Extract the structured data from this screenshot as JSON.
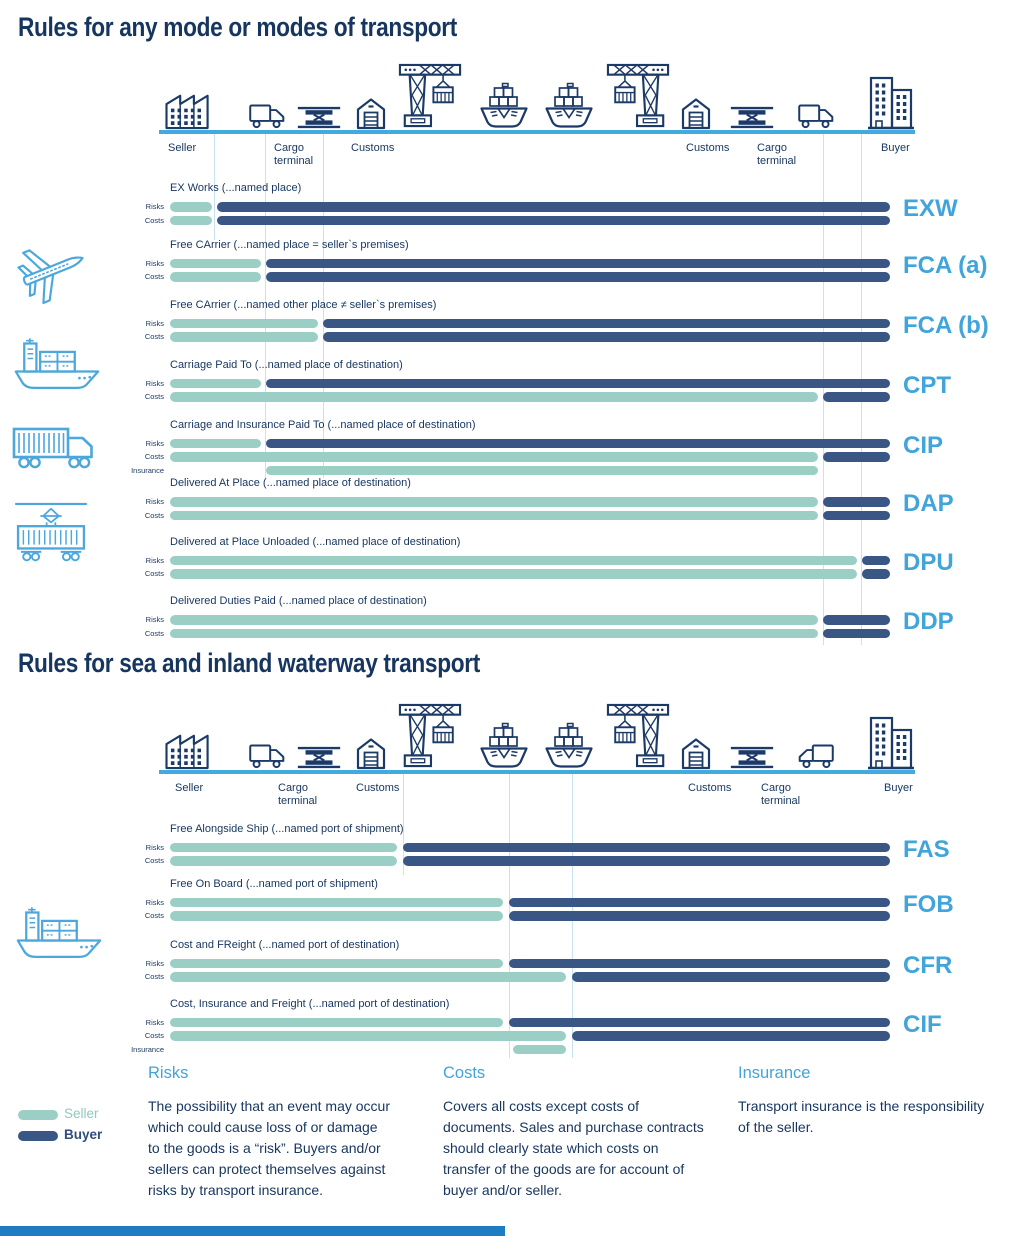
{
  "legend": {
    "seller_label": "Seller",
    "buyer_label": "Buyer"
  },
  "bar_labels": {
    "risks": "Risks",
    "costs": "Costs",
    "insurance": "Insurance"
  },
  "colors": {
    "seller": "#9BCFC6",
    "buyer": "#3A5685",
    "accent": "#41A4DA",
    "ink": "#16355F",
    "route": "#41AADF"
  },
  "sections": [
    {
      "title": "Rules for any mode or modes of transport",
      "stations": [
        "Seller",
        "Cargo terminal",
        "Customs",
        "Customs",
        "Cargo terminal",
        "Buyer"
      ],
      "icons": [
        {
          "name": "factory-icon"
        },
        {
          "name": "truck-icon"
        },
        {
          "name": "cargo-terminal-icon"
        },
        {
          "name": "warehouse-icon"
        },
        {
          "name": "crane-icon"
        },
        {
          "name": "ship-icon"
        },
        {
          "name": "ship-icon"
        },
        {
          "name": "crane-icon",
          "flip": true
        },
        {
          "name": "warehouse-icon"
        },
        {
          "name": "cargo-terminal-icon"
        },
        {
          "name": "truck-icon"
        },
        {
          "name": "building-icon"
        }
      ],
      "side_icons": [
        "airplane-icon",
        "cargo-ship-icon",
        "truck-side-icon",
        "train-icon"
      ],
      "rows": [
        {
          "code": "EXW",
          "label": "EX Works (...named place)",
          "bars": {
            "risks": [
              {
                "owner": "seller",
                "from": 170,
                "to": 212
              },
              {
                "owner": "buyer",
                "from": 217,
                "to": 890
              }
            ],
            "costs": [
              {
                "owner": "seller",
                "from": 170,
                "to": 212
              },
              {
                "owner": "buyer",
                "from": 217,
                "to": 890
              }
            ]
          }
        },
        {
          "code": "FCA (a)",
          "label": "Free CArrier (...named place = seller`s premises)",
          "bars": {
            "risks": [
              {
                "owner": "seller",
                "from": 170,
                "to": 261
              },
              {
                "owner": "buyer",
                "from": 266,
                "to": 890
              }
            ],
            "costs": [
              {
                "owner": "seller",
                "from": 170,
                "to": 261
              },
              {
                "owner": "buyer",
                "from": 266,
                "to": 890
              }
            ]
          }
        },
        {
          "code": "FCA (b)",
          "label": "Free CArrier (...named other place ≠ seller`s premises)",
          "bars": {
            "risks": [
              {
                "owner": "seller",
                "from": 170,
                "to": 318
              },
              {
                "owner": "buyer",
                "from": 323,
                "to": 890
              }
            ],
            "costs": [
              {
                "owner": "seller",
                "from": 170,
                "to": 318
              },
              {
                "owner": "buyer",
                "from": 323,
                "to": 890
              }
            ]
          }
        },
        {
          "code": "CPT",
          "label": "Carriage Paid To (...named place of destination)",
          "bars": {
            "risks": [
              {
                "owner": "seller",
                "from": 170,
                "to": 261
              },
              {
                "owner": "buyer",
                "from": 266,
                "to": 890
              }
            ],
            "costs": [
              {
                "owner": "seller",
                "from": 170,
                "to": 818
              },
              {
                "owner": "buyer",
                "from": 823,
                "to": 890
              }
            ]
          }
        },
        {
          "code": "CIP",
          "label": "Carriage and Insurance Paid To (...named place of destination)",
          "bars": {
            "risks": [
              {
                "owner": "seller",
                "from": 170,
                "to": 261
              },
              {
                "owner": "buyer",
                "from": 266,
                "to": 890
              }
            ],
            "costs": [
              {
                "owner": "seller",
                "from": 170,
                "to": 818
              },
              {
                "owner": "buyer",
                "from": 823,
                "to": 890
              }
            ],
            "insurance": [
              {
                "owner": "seller",
                "from": 266,
                "to": 818
              }
            ]
          }
        },
        {
          "code": "DAP",
          "label": "Delivered At Place (...named place of destination)",
          "bars": {
            "risks": [
              {
                "owner": "seller",
                "from": 170,
                "to": 818
              },
              {
                "owner": "buyer",
                "from": 823,
                "to": 890
              }
            ],
            "costs": [
              {
                "owner": "seller",
                "from": 170,
                "to": 818
              },
              {
                "owner": "buyer",
                "from": 823,
                "to": 890
              }
            ]
          }
        },
        {
          "code": "DPU",
          "label": "Delivered at Place Unloaded (...named place of destination)",
          "bars": {
            "risks": [
              {
                "owner": "seller",
                "from": 170,
                "to": 857
              },
              {
                "owner": "buyer",
                "from": 862,
                "to": 890
              }
            ],
            "costs": [
              {
                "owner": "seller",
                "from": 170,
                "to": 857
              },
              {
                "owner": "buyer",
                "from": 862,
                "to": 890
              }
            ]
          }
        },
        {
          "code": "DDP",
          "label": "Delivered Duties Paid (...named place of destination)",
          "bars": {
            "risks": [
              {
                "owner": "seller",
                "from": 170,
                "to": 818
              },
              {
                "owner": "buyer",
                "from": 823,
                "to": 890
              }
            ],
            "costs": [
              {
                "owner": "seller",
                "from": 170,
                "to": 818
              },
              {
                "owner": "buyer",
                "from": 823,
                "to": 890
              }
            ]
          }
        }
      ]
    },
    {
      "title": "Rules for sea and inland waterway transport",
      "stations": [
        "Seller",
        "Cargo terminal",
        "Customs",
        "Customs",
        "Cargo terminal",
        "Buyer"
      ],
      "icons": [
        {
          "name": "factory-icon"
        },
        {
          "name": "truck-icon"
        },
        {
          "name": "cargo-terminal-icon"
        },
        {
          "name": "warehouse-icon"
        },
        {
          "name": "crane-icon"
        },
        {
          "name": "ship-icon"
        },
        {
          "name": "ship-icon"
        },
        {
          "name": "crane-icon",
          "flip": true
        },
        {
          "name": "warehouse-icon"
        },
        {
          "name": "cargo-terminal-icon"
        },
        {
          "name": "truck-icon",
          "flip": true
        },
        {
          "name": "building-icon"
        }
      ],
      "side_icons": [
        "cargo-ship-icon"
      ],
      "rows": [
        {
          "code": "FAS",
          "label": "Free Alongside Ship (...named port of shipment)",
          "bars": {
            "risks": [
              {
                "owner": "seller",
                "from": 170,
                "to": 397
              },
              {
                "owner": "buyer",
                "from": 403,
                "to": 890
              }
            ],
            "costs": [
              {
                "owner": "seller",
                "from": 170,
                "to": 397
              },
              {
                "owner": "buyer",
                "from": 403,
                "to": 890
              }
            ]
          }
        },
        {
          "code": "FOB",
          "label": "Free On Board (...named port of shipment)",
          "bars": {
            "risks": [
              {
                "owner": "seller",
                "from": 170,
                "to": 503
              },
              {
                "owner": "buyer",
                "from": 509,
                "to": 890
              }
            ],
            "costs": [
              {
                "owner": "seller",
                "from": 170,
                "to": 503
              },
              {
                "owner": "buyer",
                "from": 509,
                "to": 890
              }
            ]
          }
        },
        {
          "code": "CFR",
          "label": "Cost and FReight (...named port of destination)",
          "bars": {
            "risks": [
              {
                "owner": "seller",
                "from": 170,
                "to": 503
              },
              {
                "owner": "buyer",
                "from": 509,
                "to": 890
              }
            ],
            "costs": [
              {
                "owner": "seller",
                "from": 170,
                "to": 566
              },
              {
                "owner": "buyer",
                "from": 572,
                "to": 890
              }
            ]
          }
        },
        {
          "code": "CIF",
          "label": "Cost, Insurance and Freight  (...named port of destination)",
          "bars": {
            "risks": [
              {
                "owner": "seller",
                "from": 170,
                "to": 503
              },
              {
                "owner": "buyer",
                "from": 509,
                "to": 890
              }
            ],
            "costs": [
              {
                "owner": "seller",
                "from": 170,
                "to": 566
              },
              {
                "owner": "buyer",
                "from": 572,
                "to": 890
              }
            ],
            "insurance": [
              {
                "owner": "seller",
                "from": 513,
                "to": 566
              }
            ]
          }
        }
      ]
    }
  ],
  "footer": {
    "columns": [
      {
        "heading": "Risks",
        "text": "The possibility that an event may occur\nwhich could cause loss of or damage\nto the goods is a “risk”. Buyers and/or\nsellers can protect themselves against\nrisks by transport insurance."
      },
      {
        "heading": "Costs",
        "text": "Covers all costs except costs of\ndocuments. Sales and purchase contracts\nshould clearly state which costs on\ntransfer of the goods are for account of\nbuyer and/or seller."
      },
      {
        "heading": "Insurance",
        "text": "Transport insurance is the responsibility\nof the seller."
      }
    ]
  }
}
